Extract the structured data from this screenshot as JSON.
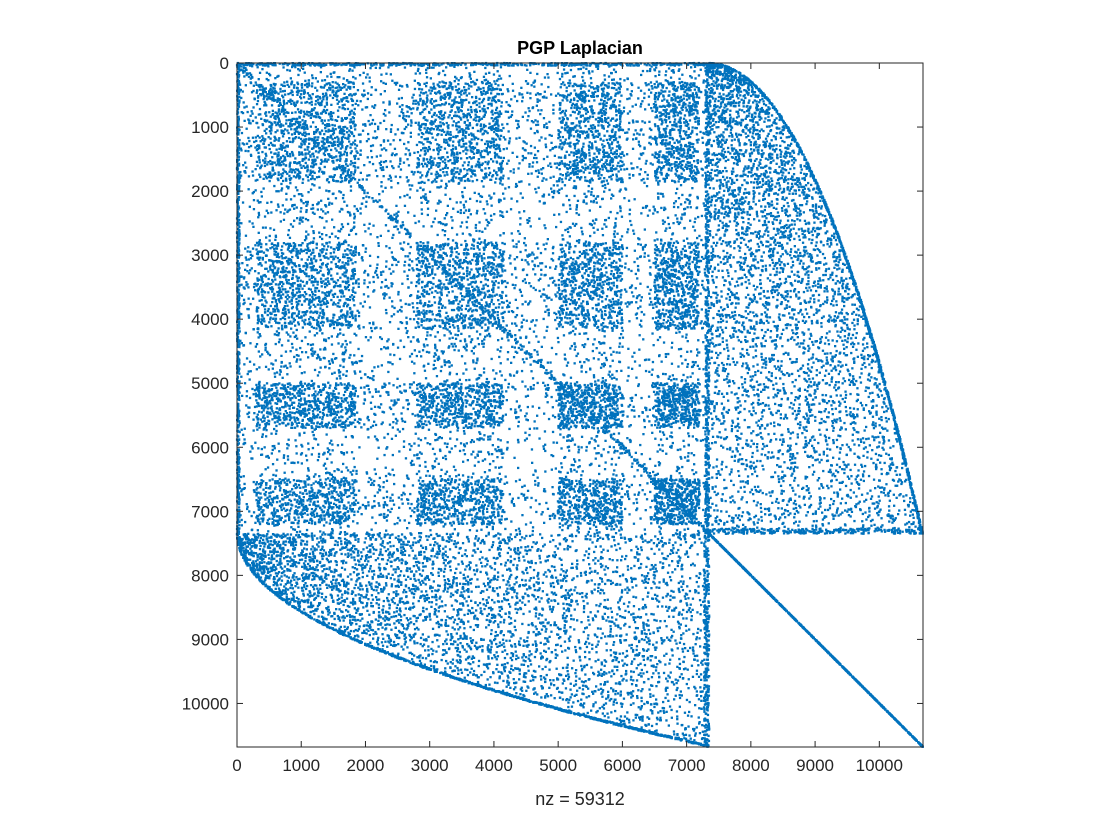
{
  "chart_data": {
    "type": "scatter",
    "title": "PGP Laplacian",
    "xlabel": "nz = 59312",
    "ylabel": "",
    "matrix_size": 10680,
    "nz": 59312,
    "xlim": [
      0,
      10680
    ],
    "ylim": [
      10680,
      0
    ],
    "y_axis_reversed": true,
    "grid": false,
    "xticks": [
      0,
      1000,
      2000,
      3000,
      4000,
      5000,
      6000,
      7000,
      8000,
      9000,
      10000
    ],
    "yticks": [
      0,
      1000,
      2000,
      3000,
      4000,
      5000,
      6000,
      7000,
      8000,
      9000,
      10000
    ],
    "xtick_labels": [
      "0",
      "1000",
      "2000",
      "3000",
      "4000",
      "5000",
      "6000",
      "7000",
      "8000",
      "9000",
      "10000"
    ],
    "ytick_labels": [
      "0",
      "1000",
      "2000",
      "3000",
      "4000",
      "5000",
      "6000",
      "7000",
      "8000",
      "9000",
      "10000"
    ],
    "marker_color": "#0072BD",
    "structure": {
      "dense_block_end": 7350,
      "block_ranges": [
        [
          300,
          1850
        ],
        [
          2800,
          4150
        ],
        [
          5000,
          5700
        ],
        [
          6500,
          7200
        ]
      ],
      "column_block_ranges": [
        [
          300,
          1850
        ],
        [
          2800,
          4150
        ],
        [
          5000,
          6000
        ],
        [
          6500,
          7200
        ]
      ],
      "diagonal_from": 7350,
      "diagonal_to": 10680,
      "upper_envelope_apex": [
        7350,
        0
      ],
      "upper_envelope_end": [
        10680,
        7350
      ],
      "lower_envelope_apex": [
        0,
        7350
      ],
      "lower_envelope_end": [
        7350,
        10680
      ]
    }
  }
}
